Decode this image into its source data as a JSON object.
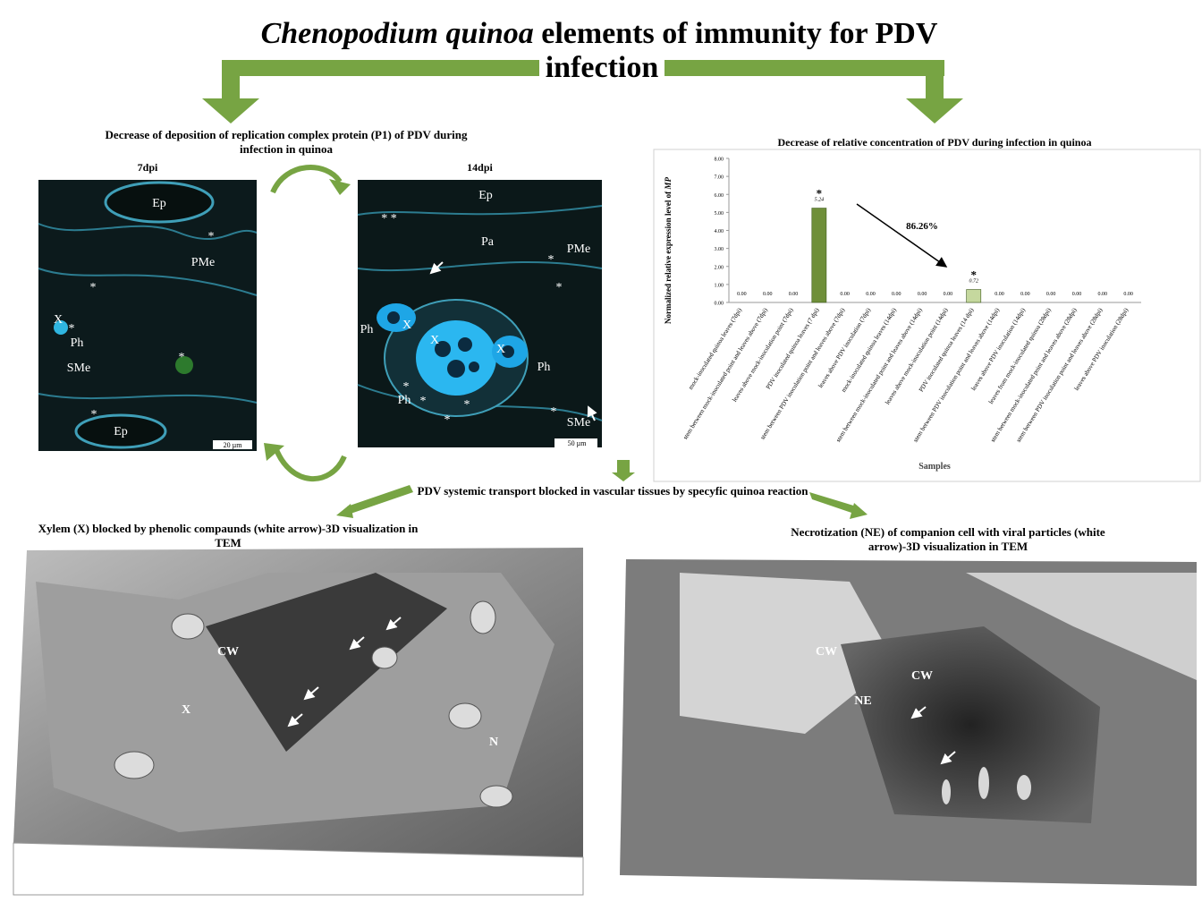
{
  "title": {
    "italic": "Chenopodium quinoa",
    "rest": " elements of immunity for PDV",
    "line2": "infection"
  },
  "left_panel": {
    "heading": "Decrease of deposition of replication complex protein (P1) of PDV during infection in quinoa",
    "images": [
      {
        "title": "7dpi",
        "labels": [
          "Ep",
          "*",
          "PMe",
          "*",
          "X",
          "*",
          "Ph",
          "SMe",
          "*",
          "*",
          "Ep"
        ],
        "scale": "20 µm"
      },
      {
        "title": "14dpi",
        "labels": [
          "Ep",
          "* *",
          "Pa",
          "PMe",
          "*",
          "*",
          "Ph",
          "X",
          "X",
          "X",
          "Ph",
          "Ph",
          "*",
          "*",
          "*",
          "*",
          "*",
          "SMe"
        ],
        "scale": "50 µm"
      }
    ]
  },
  "chart_data": {
    "type": "bar",
    "title": "Decrease of relative concentration of PDV during infection in quinoa",
    "xlabel": "Samples",
    "ylabel": {
      "text": "Normalized relative expression level of ",
      "italic": "MP"
    },
    "categories": [
      "mock-inoculated quinoa leaves (7dpi)",
      "stem between mock-inoculated point and leaves above (7dpi)",
      "leaves above mock-inoculation point (7dpi)",
      "PDV inoculated quinoa leaves (7 dpi)",
      "stem between PDV inoculation point and leaves above (7dpi)",
      "leaves above PDV inoculation (7dpi)",
      "mock-inoculated quinoa leaves (14dpi)",
      "stem between mock-inoculated point and leaves above (14dpi)",
      "leaves above mock-inoculation point (14dpi)",
      "PDV inoculated quinoa leaves (14 dpi)",
      "stem between PDV inoculation point and leaves above (14dpi)",
      "leaves above PDV inoculation (14dpi)",
      "leaves from mock-inoculated quinoa (28dpi)",
      "stem between mock-inoculated point and leaves above (28dpi)",
      "stem between PDV inoculation point and leaves above (28dpi)",
      "leaves above PDV inoculation (28dpi)"
    ],
    "values": [
      0,
      0,
      0,
      5.24,
      0,
      0,
      0,
      0,
      0,
      0.72,
      0,
      0,
      0,
      0,
      0,
      0
    ],
    "value_labels": [
      "0.00",
      "0.00",
      "0.00",
      "5.24",
      "0.00",
      "0.00",
      "0.00",
      "0.00",
      "0.00",
      "0.72",
      "0.00",
      "0.00",
      "0.00",
      "0.00",
      "0.00",
      "0.00"
    ],
    "colors": [
      "#6f8f3a",
      "#6f8f3a",
      "#6f8f3a",
      "#6f8f3a",
      "#6f8f3a",
      "#6f8f3a",
      "#6f8f3a",
      "#6f8f3a",
      "#6f8f3a",
      "#c5d89e",
      "#c5d89e",
      "#c5d89e",
      "#c5d89e",
      "#c5d89e",
      "#c5d89e",
      "#c5d89e"
    ],
    "ylim": [
      0,
      8
    ],
    "yticks": [
      {
        "value": 0,
        "label": "0.00"
      },
      {
        "value": 1,
        "label": "1.00"
      },
      {
        "value": 2,
        "label": "2.00"
      },
      {
        "value": 3,
        "label": "3.00"
      },
      {
        "value": 4,
        "label": "4.00"
      },
      {
        "value": 5,
        "label": "5.00"
      },
      {
        "value": 6,
        "label": "6.00"
      },
      {
        "value": 7,
        "label": "7.00"
      },
      {
        "value": 8,
        "label": "8.00"
      }
    ],
    "grid": false,
    "significance_labels": [
      "*",
      "*"
    ],
    "annotation": "86.26%"
  },
  "transport_note": "PDV systemic transport blocked in vascular tissues by specyfic quinoa reaction",
  "tem": [
    {
      "caption": "Xylem (X) blocked by phenolic compaunds (white arrow)-3D visualization in TEM",
      "labels": [
        "CW",
        "X",
        "N"
      ]
    },
    {
      "caption": "Necrotization (NE) of companion cell with viral particles (white arrow)-3D visualization in TEM",
      "labels": [
        "CW",
        "CW",
        "NE"
      ]
    }
  ]
}
